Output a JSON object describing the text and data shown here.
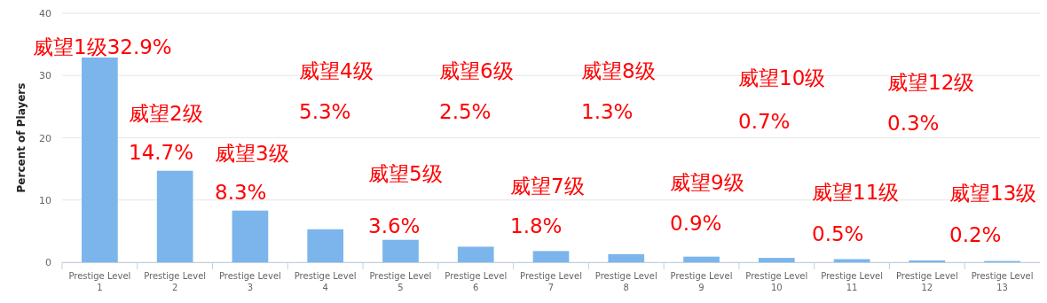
{
  "chart_data": {
    "type": "bar",
    "ylabel": "Percent of Players",
    "categories": [
      "Prestige Level 1",
      "Prestige Level 2",
      "Prestige Level 3",
      "Prestige Level 4",
      "Prestige Level 5",
      "Prestige Level 6",
      "Prestige Level 7",
      "Prestige Level 8",
      "Prestige Level 9",
      "Prestige Level 10",
      "Prestige Level 11",
      "Prestige Level 12",
      "Prestige Level 13"
    ],
    "values": [
      32.9,
      14.7,
      8.3,
      5.3,
      3.6,
      2.5,
      1.8,
      1.3,
      0.9,
      0.7,
      0.5,
      0.3,
      0.2
    ],
    "color": "#7cb5ec",
    "ylim": [
      0,
      40
    ],
    "yticks": [
      0,
      10,
      20,
      30,
      40
    ],
    "grid": "y",
    "annotations": [
      "威望1级32.9%",
      "威望2级\n14.7%",
      "威望3级\n8.3%",
      "威望4级\n5.3%",
      "威望5级\n3.6%",
      "威望6级\n2.5%",
      "威望7级\n1.8%",
      "威望8级\n1.3%",
      "威望9级\n0.9%",
      "威望10级\n0.7%",
      "威望11级\n0.5%",
      "威望12级\n0.3%",
      "威望13级\n0.2%"
    ]
  }
}
